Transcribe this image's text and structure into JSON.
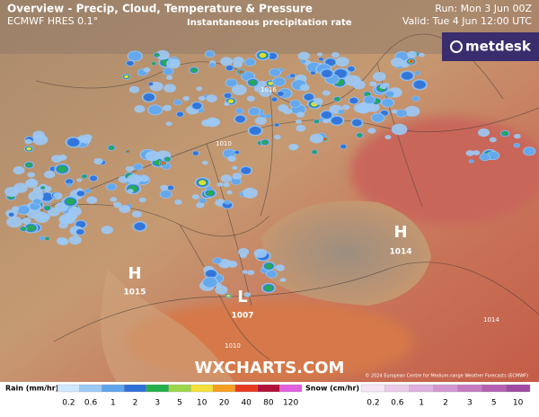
{
  "header": {
    "title": "Overview - Precip, Cloud, Temperature & Pressure",
    "model": "ECMWF HRES 0.1°",
    "subtitle": "Instantaneous precipitation rate",
    "run": "Run: Mon 3 Jun 00Z",
    "valid": "Valid: Tue 4 Jun 12:00 UTC"
  },
  "brand": "metdesk",
  "watermark": "WXCHARTS.COM",
  "copyright": "© 2024 European Centre for Medium-range Weather Forecasts (ECMWF)",
  "pressure_centres": [
    {
      "letter": "H",
      "value": "1015"
    },
    {
      "letter": "L",
      "value": "1007"
    },
    {
      "letter": "H",
      "value": "1014"
    }
  ],
  "isobar_labels": [
    "1016",
    "1010",
    "1014",
    "1010"
  ],
  "legend": {
    "rain": {
      "label": "Rain (mm/hr)",
      "ticks": [
        0.2,
        0.6,
        1,
        2,
        3,
        5,
        10,
        20,
        40,
        80,
        120
      ],
      "colors": [
        "#cfe8ff",
        "#9cc9f5",
        "#5fa5ec",
        "#2f6fd8",
        "#22b04a",
        "#9bd64a",
        "#f4e03a",
        "#f5a020",
        "#e83a20",
        "#b0103a",
        "#e060e0"
      ]
    },
    "snow": {
      "label": "Snow (cm/hr)",
      "ticks": [
        0.2,
        0.6,
        1,
        2,
        3,
        5,
        10
      ],
      "colors": [
        "#f6e6f6",
        "#eccbea",
        "#dfb0dd",
        "#d296d0",
        "#c47bc2",
        "#b460b0",
        "#a04aa0"
      ]
    }
  }
}
